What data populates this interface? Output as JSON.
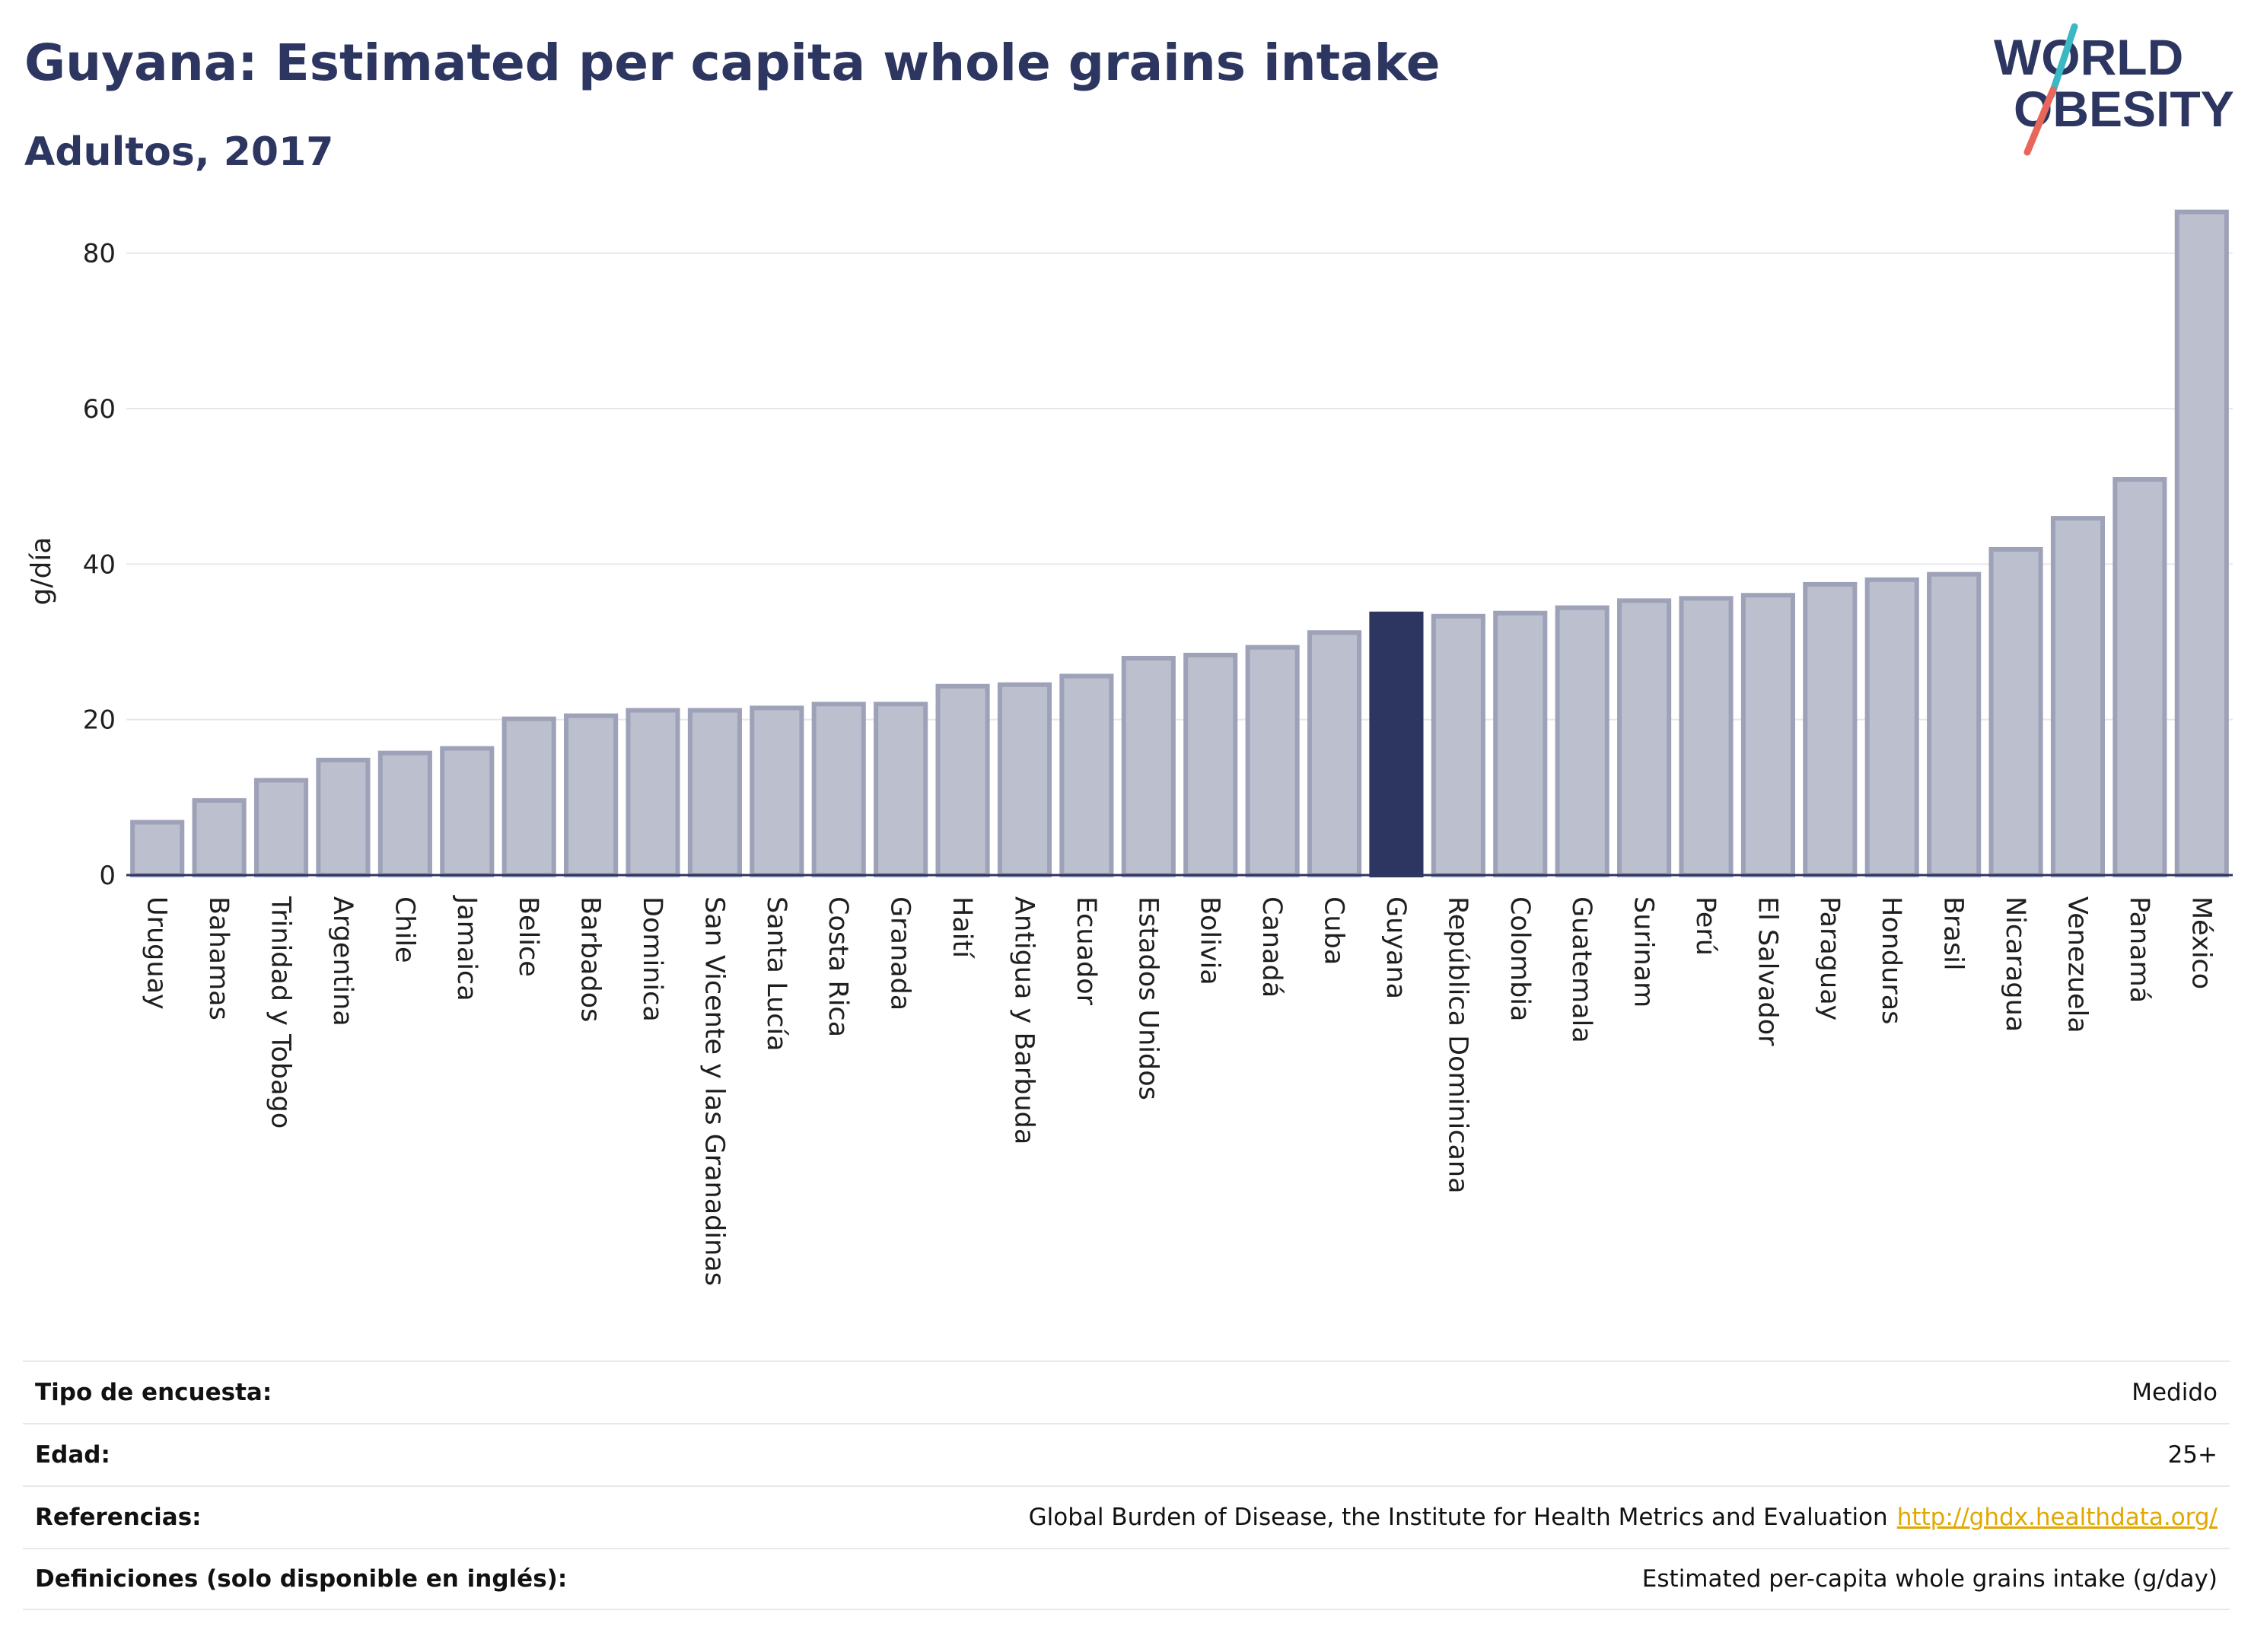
{
  "header": {
    "title": "Guyana: Estimated per capita whole grains intake",
    "subtitle": "Adultos, 2017"
  },
  "logo": {
    "line1": "WORLD",
    "line2": "OBESITY",
    "colors": {
      "text": "#2c3660",
      "slash_teal": "#3bb8c4",
      "slash_coral": "#e8675a"
    }
  },
  "colors": {
    "bar": "#bcbfcd",
    "bar_stroke": "#9ea2b8",
    "highlight": "#2c3660",
    "grid": "#e6e8ee"
  },
  "chart_data": {
    "type": "bar",
    "title": "Guyana: Estimated per capita whole grains intake",
    "subtitle": "Adultos, 2017",
    "ylabel": "g/día",
    "xlabel": "",
    "ylim": [
      0,
      88
    ],
    "yticks": [
      0,
      20,
      40,
      60,
      80
    ],
    "grid": true,
    "highlight": "Guyana",
    "categories": [
      "Uruguay",
      "Bahamas",
      "Trinidad y Tobago",
      "Argentina",
      "Chile",
      "Jamaica",
      "Belice",
      "Barbados",
      "Dominica",
      "San Vicente y las Granadinas",
      "Santa Lucía",
      "Costa Rica",
      "Granada",
      "Haití",
      "Antigua y Barbuda",
      "Ecuador",
      "Estados Unidos",
      "Bolivia",
      "Canadá",
      "Cuba",
      "Guyana",
      "República Dominicana",
      "Colombia",
      "Guatemala",
      "Surinam",
      "Perú",
      "El Salvador",
      "Paraguay",
      "Honduras",
      "Brasil",
      "Nicaragua",
      "Venezuela",
      "Panamá",
      "México"
    ],
    "values": [
      6.8,
      9.6,
      12.2,
      14.8,
      15.7,
      16.3,
      20.1,
      20.5,
      21.2,
      21.2,
      21.5,
      22.0,
      22.0,
      24.3,
      24.5,
      25.6,
      27.9,
      28.3,
      29.3,
      31.2,
      33.6,
      33.3,
      33.7,
      34.4,
      35.3,
      35.6,
      36.0,
      37.4,
      38.0,
      38.7,
      41.9,
      45.9,
      50.9,
      85.3
    ]
  },
  "info": [
    {
      "label": "Tipo de encuesta:",
      "value": "Medido",
      "link": ""
    },
    {
      "label": "Edad:",
      "value": "25+",
      "link": ""
    },
    {
      "label": "Referencias:",
      "value": "Global Burden of Disease, the Institute for Health Metrics and Evaluation",
      "link": "http://ghdx.healthdata.org/"
    },
    {
      "label": "Definiciones (solo disponible en inglés):",
      "value": "Estimated per-capita whole grains intake (g/day)",
      "link": ""
    }
  ]
}
